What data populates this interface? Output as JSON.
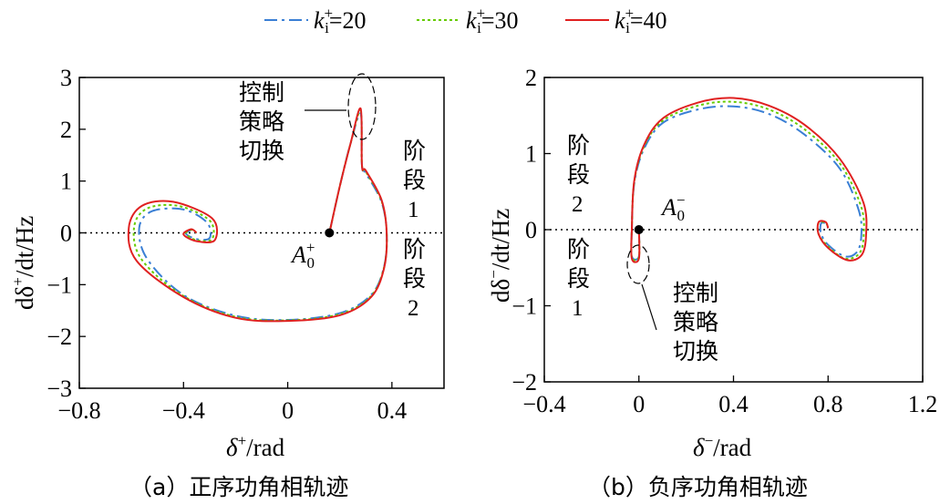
{
  "legend": {
    "placement": "top-center",
    "items": [
      {
        "label_main": "k",
        "label_sup": "+",
        "label_sub": "i",
        "label_rest": "=20",
        "color": "#3a7fd5",
        "dash": "dashdot"
      },
      {
        "label_main": "k",
        "label_sup": "+",
        "label_sub": "i",
        "label_rest": "=30",
        "color": "#66cc00",
        "dash": "dotted"
      },
      {
        "label_main": "k",
        "label_sup": "+",
        "label_sub": "i",
        "label_rest": "=40",
        "color": "#e02020",
        "dash": "solid"
      }
    ]
  },
  "chart_data": [
    {
      "type": "line",
      "caption": "（a）正序功角相轨迹",
      "xlabel_main": "δ",
      "xlabel_sup": "+",
      "xlabel_rest": "/rad",
      "ylabel_main": "dδ",
      "ylabel_sup": "+",
      "ylabel_rest": "/dt/Hz",
      "xlim": [
        -0.8,
        0.6
      ],
      "ylim": [
        -3,
        3
      ],
      "xticks": [
        -0.8,
        -0.4,
        0,
        0.4
      ],
      "xtick_labels": [
        "−0.8",
        "−0.4",
        "0",
        "0.4"
      ],
      "yticks": [
        -3,
        -2,
        -1,
        0,
        1,
        2,
        3
      ],
      "ytick_labels": [
        "−3",
        "−2",
        "−1",
        "0",
        "1",
        "2",
        "3"
      ],
      "grid": false,
      "equilibrium": {
        "x": 0.16,
        "y": 0,
        "label_main": "A",
        "label_sup": "+",
        "label_sub": "0"
      },
      "annotations": [
        {
          "name": "strategy-switch",
          "lines": [
            "控制",
            "策略",
            "切换"
          ]
        },
        {
          "name": "stage-1",
          "lines": [
            "阶",
            "段",
            "1"
          ]
        },
        {
          "name": "stage-2",
          "lines": [
            "阶",
            "段",
            "2"
          ]
        }
      ],
      "series": [
        {
          "name": "k_i^+=20",
          "color": "#3a7fd5",
          "x": [
            0.16,
            0.2,
            0.24,
            0.28,
            0.285,
            0.3,
            0.36,
            0.38,
            0.37,
            0.32,
            0.2,
            0.0,
            -0.2,
            -0.4,
            -0.54,
            -0.57,
            -0.52,
            -0.4,
            -0.31,
            -0.3,
            -0.35,
            -0.39,
            -0.37,
            -0.35
          ],
          "y": [
            0,
            0.9,
            1.7,
            2.3,
            1.3,
            1.15,
            0.6,
            0.0,
            -0.65,
            -1.2,
            -1.55,
            -1.68,
            -1.6,
            -1.2,
            -0.5,
            0.1,
            0.42,
            0.45,
            0.2,
            -0.1,
            -0.12,
            -0.02,
            0.05,
            0.0
          ]
        },
        {
          "name": "k_i^+=30",
          "color": "#66cc00",
          "x": [
            0.16,
            0.2,
            0.24,
            0.28,
            0.285,
            0.3,
            0.36,
            0.38,
            0.37,
            0.32,
            0.2,
            0.0,
            -0.2,
            -0.4,
            -0.56,
            -0.59,
            -0.54,
            -0.42,
            -0.3,
            -0.29,
            -0.35,
            -0.39,
            -0.37,
            -0.35
          ],
          "y": [
            0,
            0.9,
            1.7,
            2.35,
            1.3,
            1.18,
            0.62,
            0.0,
            -0.66,
            -1.22,
            -1.57,
            -1.69,
            -1.62,
            -1.22,
            -0.52,
            0.1,
            0.47,
            0.52,
            0.24,
            -0.12,
            -0.14,
            -0.02,
            0.06,
            0.0
          ]
        },
        {
          "name": "k_i^+=40",
          "color": "#e02020",
          "x": [
            0.16,
            0.2,
            0.24,
            0.28,
            0.285,
            0.3,
            0.36,
            0.38,
            0.37,
            0.32,
            0.2,
            0.0,
            -0.2,
            -0.4,
            -0.58,
            -0.61,
            -0.56,
            -0.44,
            -0.29,
            -0.28,
            -0.35,
            -0.4,
            -0.37,
            -0.35
          ],
          "y": [
            0,
            0.9,
            1.7,
            2.4,
            1.3,
            1.2,
            0.64,
            0.0,
            -0.68,
            -1.24,
            -1.59,
            -1.7,
            -1.64,
            -1.24,
            -0.54,
            0.1,
            0.52,
            0.6,
            0.28,
            -0.14,
            -0.16,
            -0.03,
            0.07,
            0.0
          ]
        }
      ]
    },
    {
      "type": "line",
      "caption": "（b）负序功角相轨迹",
      "xlabel_main": "δ",
      "xlabel_sup": "−",
      "xlabel_rest": "/rad",
      "ylabel_main": "dδ",
      "ylabel_sup": "−",
      "ylabel_rest": "/dt/Hz",
      "xlim": [
        -0.4,
        1.2
      ],
      "ylim": [
        -2,
        2
      ],
      "xticks": [
        -0.4,
        0,
        0.4,
        0.8,
        1.2
      ],
      "xtick_labels": [
        "−0.4",
        "0",
        "0.4",
        "0.8",
        "1.2"
      ],
      "yticks": [
        -2,
        -1,
        0,
        1,
        2
      ],
      "ytick_labels": [
        "−2",
        "−1",
        "0",
        "1",
        "2"
      ],
      "grid": false,
      "equilibrium": {
        "x": 0.0,
        "y": 0,
        "label_main": "A",
        "label_sup": "−",
        "label_sub": "0"
      },
      "annotations": [
        {
          "name": "stage-2",
          "lines": [
            "阶",
            "段",
            "2"
          ]
        },
        {
          "name": "stage-1",
          "lines": [
            "阶",
            "段",
            "1"
          ]
        },
        {
          "name": "strategy-switch",
          "lines": [
            "控制",
            "策略",
            "切换"
          ]
        }
      ],
      "series": [
        {
          "name": "k_i^+=20",
          "color": "#3a7fd5",
          "x": [
            0.0,
            0.0,
            -0.03,
            -0.03,
            -0.02,
            0.02,
            0.1,
            0.25,
            0.4,
            0.55,
            0.7,
            0.85,
            0.93,
            0.94,
            0.92,
            0.87,
            0.8,
            0.77,
            0.77,
            0.79,
            0.8
          ],
          "y": [
            0,
            -0.35,
            -0.35,
            0.0,
            0.6,
            1.05,
            1.4,
            1.58,
            1.62,
            1.52,
            1.25,
            0.8,
            0.25,
            -0.1,
            -0.3,
            -0.35,
            -0.2,
            -0.05,
            0.08,
            0.08,
            0.02
          ]
        },
        {
          "name": "k_i^+=30",
          "color": "#66cc00",
          "x": [
            0.0,
            0.0,
            -0.03,
            -0.03,
            -0.02,
            0.02,
            0.1,
            0.25,
            0.4,
            0.55,
            0.7,
            0.85,
            0.94,
            0.95,
            0.93,
            0.87,
            0.8,
            0.76,
            0.76,
            0.79,
            0.8
          ],
          "y": [
            0,
            -0.36,
            -0.36,
            0.0,
            0.62,
            1.08,
            1.43,
            1.63,
            1.68,
            1.58,
            1.32,
            0.87,
            0.3,
            -0.1,
            -0.32,
            -0.38,
            -0.22,
            -0.06,
            0.09,
            0.09,
            0.02
          ]
        },
        {
          "name": "k_i^+=40",
          "color": "#e02020",
          "x": [
            0.0,
            0.0,
            -0.03,
            -0.03,
            -0.02,
            0.02,
            0.1,
            0.25,
            0.4,
            0.55,
            0.7,
            0.85,
            0.95,
            0.96,
            0.94,
            0.88,
            0.8,
            0.76,
            0.76,
            0.79,
            0.8
          ],
          "y": [
            0,
            -0.38,
            -0.38,
            0.0,
            0.64,
            1.1,
            1.46,
            1.67,
            1.73,
            1.63,
            1.38,
            0.93,
            0.35,
            -0.1,
            -0.34,
            -0.4,
            -0.24,
            -0.06,
            0.1,
            0.1,
            0.02
          ]
        }
      ]
    }
  ]
}
